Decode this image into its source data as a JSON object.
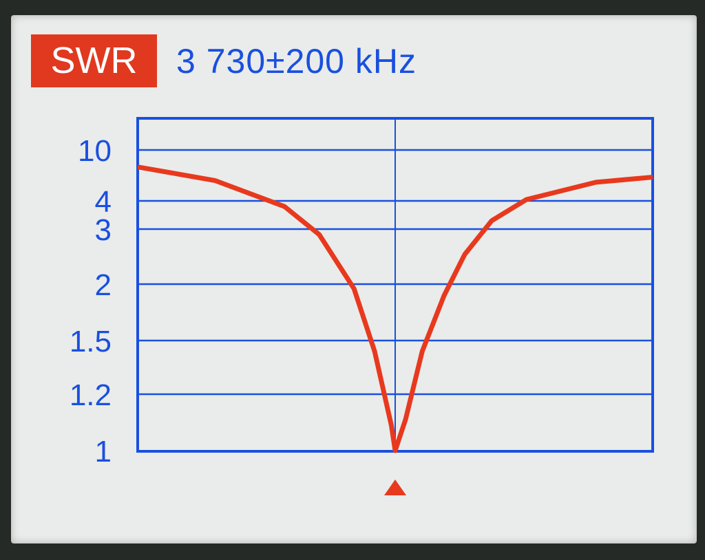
{
  "header": {
    "mode_label": "SWR",
    "range_label": "3 730±200 kHz"
  },
  "colors": {
    "grid": "#1a4fe0",
    "curve": "#e8391e",
    "badge": "#e0391f",
    "screen": "#e9ecea"
  },
  "marker_icon": "triangle-up-icon",
  "chart_data": {
    "type": "line",
    "title": "",
    "xlabel": "",
    "ylabel": "",
    "xlim": [
      3530,
      3930
    ],
    "center_kHz": 3730,
    "yticks": [
      1,
      1.2,
      1.5,
      2,
      3,
      4,
      10
    ],
    "ytick_labels": [
      "1",
      "1.2",
      "1.5",
      "2",
      "3",
      "4",
      "10"
    ],
    "yscale": "nonlinear SWR",
    "grid": true,
    "series": [
      {
        "x": [
          3530,
          3590,
          3644,
          3671,
          3698,
          3714,
          3727,
          3730,
          3738,
          3751,
          3768,
          3784,
          3805,
          3832,
          3886,
          3930
        ],
        "y": [
          8.0,
          6.4,
          3.8,
          2.9,
          1.96,
          1.44,
          1.09,
          1.0,
          1.11,
          1.44,
          1.9,
          2.54,
          3.3,
          4.16,
          6.2,
          6.8
        ]
      }
    ]
  }
}
